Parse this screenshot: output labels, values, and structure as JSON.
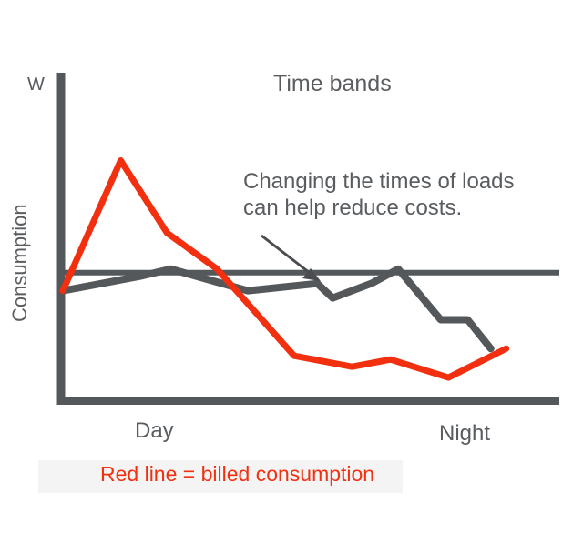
{
  "chart_data": {
    "type": "line",
    "title": "Time bands",
    "ylabel": "Consumption",
    "y_unit": "W",
    "x_labels": [
      "Day",
      "Night"
    ],
    "annotation": [
      "Changing the times of loads",
      "can help reduce costs."
    ],
    "threshold": 67,
    "series": [
      {
        "color": "#f2300f",
        "points": [
          [
            0,
            62
          ],
          [
            15,
            98
          ],
          [
            27,
            78
          ],
          [
            40,
            68
          ],
          [
            60,
            44
          ],
          [
            75,
            41
          ],
          [
            85,
            43
          ],
          [
            100,
            38
          ],
          [
            115,
            46
          ]
        ]
      },
      {
        "color": "#55585b",
        "points": [
          [
            0,
            62
          ],
          [
            20,
            66
          ],
          [
            28,
            68
          ],
          [
            48,
            62
          ],
          [
            66,
            64
          ],
          [
            70,
            60
          ],
          [
            80,
            64
          ],
          [
            87,
            68
          ],
          [
            98,
            54
          ],
          [
            105,
            54
          ],
          [
            111,
            46
          ]
        ]
      }
    ],
    "xlim": [
      0,
      125
    ],
    "ylim": [
      35,
      121
    ]
  },
  "caption": "Red line = billed consumption",
  "colors": {
    "axis": "#55585b",
    "billed": "#f2300f",
    "text": "#5a5d60"
  }
}
